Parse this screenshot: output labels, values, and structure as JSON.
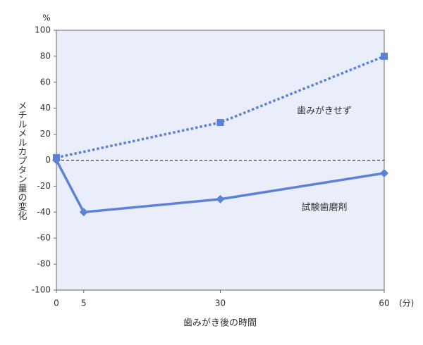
{
  "chart_data": {
    "type": "line",
    "y_label": "メチルメルカプタン量の変化",
    "y_unit": "%",
    "x_label": "歯みがき後の時間",
    "x_unit": "(分)",
    "series": [
      {
        "name": "歯みがきせず",
        "color": "#5b82d8",
        "style": "dotted",
        "marker": "square",
        "x": [
          0,
          30,
          60
        ],
        "values": [
          2,
          29,
          80
        ]
      },
      {
        "name": "試験歯磨剤",
        "color": "#5b82d8",
        "style": "solid",
        "marker": "diamond",
        "x": [
          0,
          5,
          30,
          60
        ],
        "values": [
          0,
          -40,
          -30,
          -10
        ]
      }
    ],
    "xlim": [
      0,
      60
    ],
    "xticks": [
      0,
      5,
      30,
      60
    ],
    "ylim": [
      -100,
      100
    ],
    "yticks": [
      -100,
      -80,
      -60,
      -40,
      -20,
      0,
      20,
      40,
      60,
      80,
      100
    ],
    "hline": 0
  }
}
